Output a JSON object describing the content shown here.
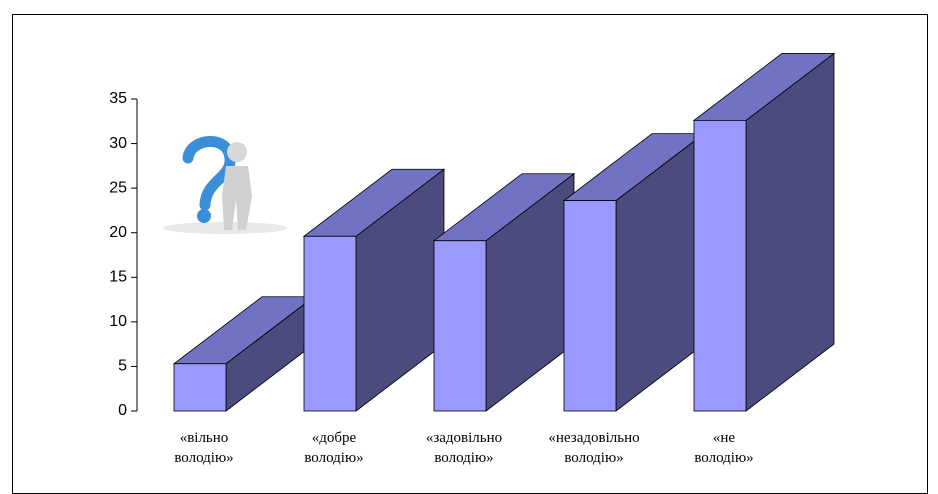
{
  "chart_data": {
    "type": "bar3d",
    "categories": [
      "«вільно володію»",
      "«добре володію»",
      "«задовільно володію»",
      "«незадовільно володію»",
      "«не володію»"
    ],
    "values": [
      5.3,
      19.6,
      19.1,
      23.6,
      32.6
    ],
    "color": "#9999ff",
    "ylim": [
      0,
      35
    ],
    "yticks": [
      0,
      5,
      10,
      15,
      20,
      25,
      30,
      35
    ]
  }
}
